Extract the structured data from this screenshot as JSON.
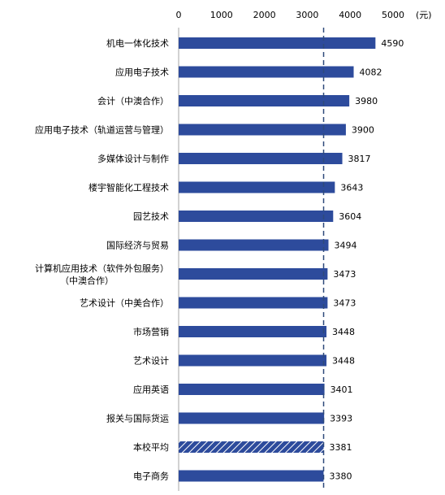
{
  "chart_data": {
    "type": "bar",
    "orientation": "horizontal",
    "unit": "(元)",
    "xlim": [
      0,
      5000
    ],
    "x_ticks": [
      "0",
      "1000",
      "2000",
      "3000",
      "4000",
      "5000"
    ],
    "reference_line": {
      "value": 3381,
      "style": "dashed"
    },
    "grid": false,
    "legend": "none",
    "colors": {
      "bar": "#2d4b9c",
      "highlight": "#2d4b9c",
      "reference": "#2e4a7a"
    },
    "bars": [
      {
        "category": "机电一体化技术",
        "value": 4590
      },
      {
        "category": "应用电子技术",
        "value": 4082
      },
      {
        "category": "会计（中澳合作）",
        "value": 3980
      },
      {
        "category": "应用电子技术（轨道运营与管理）",
        "value": 3900
      },
      {
        "category": "多媒体设计与制作",
        "value": 3817
      },
      {
        "category": "楼宇智能化工程技术",
        "value": 3643
      },
      {
        "category": "园艺技术",
        "value": 3604
      },
      {
        "category": "国际经济与贸易",
        "value": 3494
      },
      {
        "category": "计算机应用技术（软件外包服务）\n（中澳合作）",
        "value": 3473
      },
      {
        "category": "艺术设计（中美合作）",
        "value": 3473
      },
      {
        "category": "市场营销",
        "value": 3448
      },
      {
        "category": "艺术设计",
        "value": 3448
      },
      {
        "category": "应用英语",
        "value": 3401
      },
      {
        "category": "报关与国际货运",
        "value": 3393
      },
      {
        "category": "本校平均",
        "value": 3381,
        "highlight": true
      },
      {
        "category": "电子商务",
        "value": 3380
      }
    ]
  }
}
